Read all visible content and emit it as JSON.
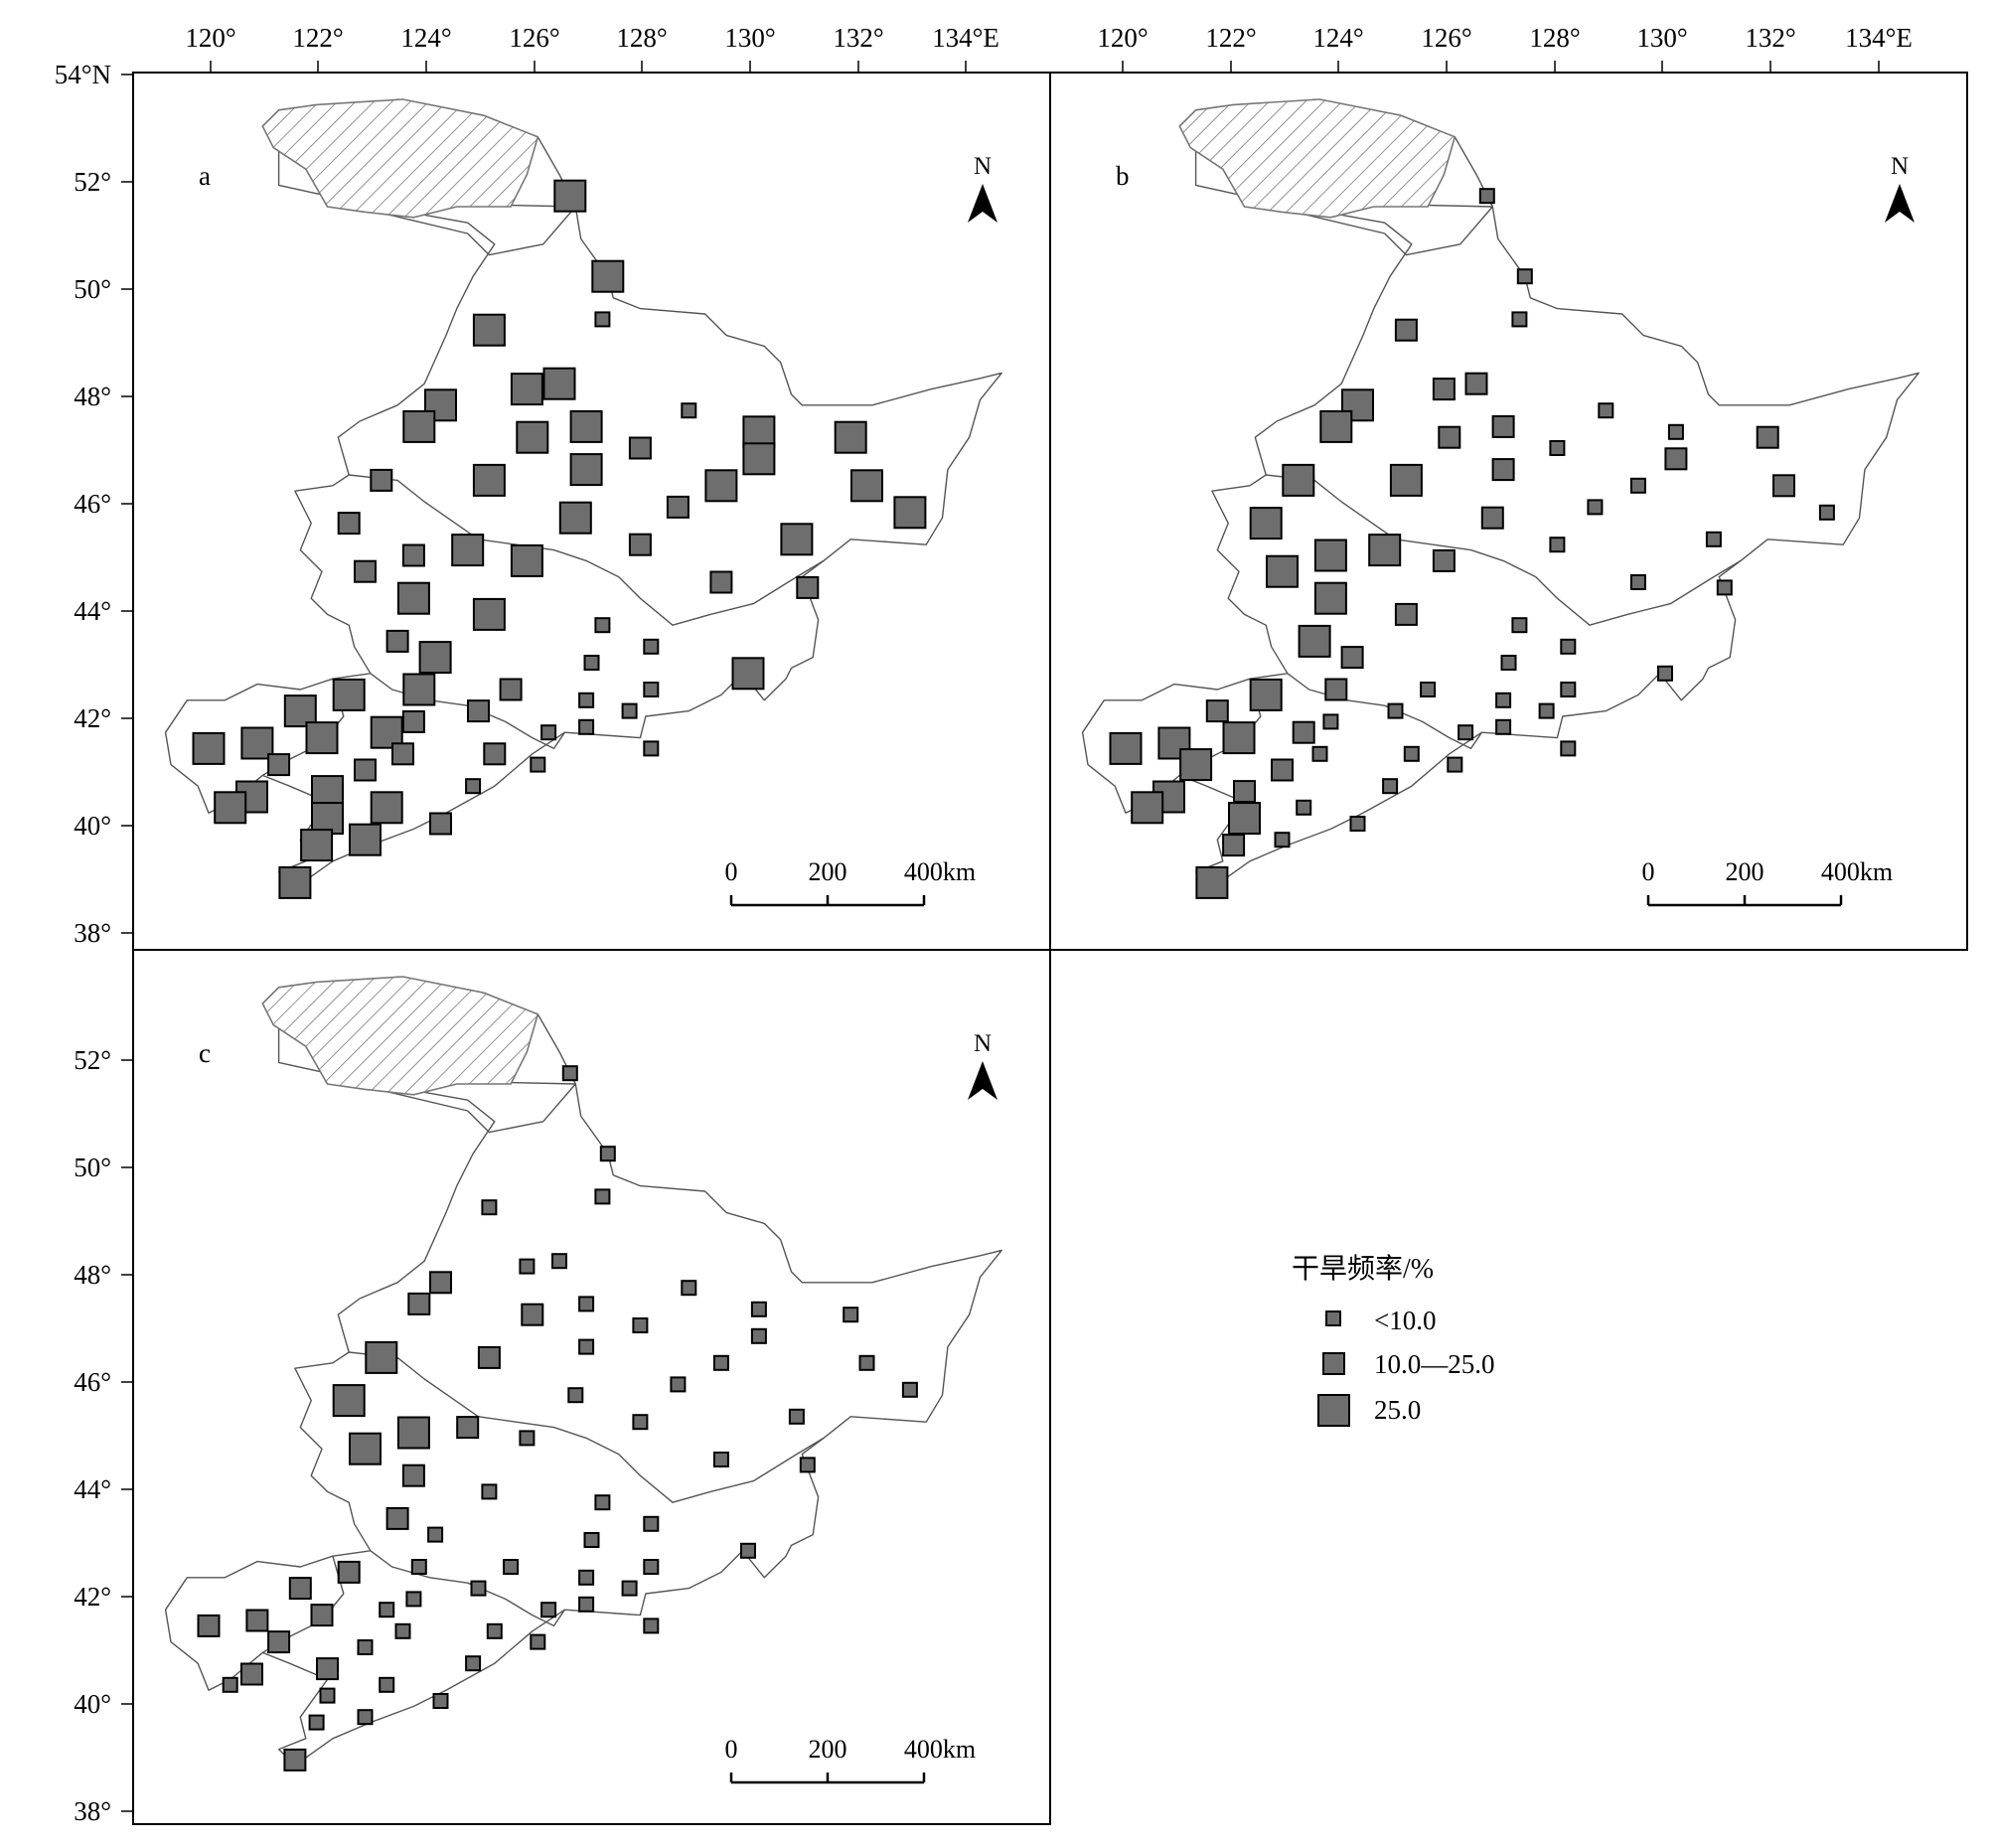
{
  "map": {
    "lon_ticks": [
      "120°",
      "122°",
      "124°",
      "126°",
      "128°",
      "130°",
      "132°",
      "134°E"
    ],
    "lat_ticks": [
      "54°N",
      "52°",
      "50°",
      "48°",
      "46°",
      "44°",
      "42°",
      "40°",
      "38°"
    ],
    "north_label": "N",
    "scale_bar": {
      "labels": [
        "0",
        "200",
        "400km"
      ]
    },
    "panels": [
      {
        "label": "a",
        "stations": [
          [
            126.7,
            51.7,
            "L"
          ],
          [
            127.4,
            50.2,
            "L"
          ],
          [
            127.3,
            49.4,
            "S"
          ],
          [
            125.2,
            49.2,
            "L"
          ],
          [
            125.9,
            48.1,
            "L"
          ],
          [
            126.5,
            48.2,
            "L"
          ],
          [
            124.3,
            47.8,
            "L"
          ],
          [
            123.9,
            47.4,
            "L"
          ],
          [
            126.0,
            47.2,
            "L"
          ],
          [
            127.0,
            47.4,
            "L"
          ],
          [
            128.9,
            47.7,
            "S"
          ],
          [
            130.2,
            47.3,
            "L"
          ],
          [
            131.9,
            47.2,
            "L"
          ],
          [
            128.0,
            47.0,
            "M"
          ],
          [
            130.2,
            46.8,
            "L"
          ],
          [
            127.0,
            46.6,
            "L"
          ],
          [
            125.2,
            46.4,
            "L"
          ],
          [
            132.2,
            46.3,
            "L"
          ],
          [
            129.5,
            46.3,
            "L"
          ],
          [
            128.7,
            45.9,
            "M"
          ],
          [
            123.2,
            46.4,
            "M"
          ],
          [
            126.8,
            45.7,
            "L"
          ],
          [
            122.6,
            45.6,
            "M"
          ],
          [
            133.0,
            45.8,
            "L"
          ],
          [
            130.9,
            45.3,
            "L"
          ],
          [
            128.0,
            45.2,
            "M"
          ],
          [
            123.8,
            45.0,
            "M"
          ],
          [
            124.8,
            45.1,
            "L"
          ],
          [
            125.9,
            44.9,
            "L"
          ],
          [
            122.9,
            44.7,
            "M"
          ],
          [
            123.8,
            44.2,
            "L"
          ],
          [
            129.5,
            44.5,
            "M"
          ],
          [
            131.1,
            44.4,
            "M"
          ],
          [
            125.2,
            43.9,
            "L"
          ],
          [
            127.3,
            43.7,
            "S"
          ],
          [
            123.5,
            43.4,
            "M"
          ],
          [
            124.2,
            43.1,
            "L"
          ],
          [
            128.2,
            43.3,
            "S"
          ],
          [
            130.0,
            42.8,
            "L"
          ],
          [
            127.1,
            43.0,
            "S"
          ],
          [
            123.9,
            42.5,
            "L"
          ],
          [
            125.6,
            42.5,
            "M"
          ],
          [
            128.2,
            42.5,
            "S"
          ],
          [
            127.0,
            42.3,
            "S"
          ],
          [
            122.6,
            42.4,
            "L"
          ],
          [
            121.7,
            42.1,
            "L"
          ],
          [
            127.8,
            42.1,
            "S"
          ],
          [
            123.8,
            41.9,
            "M"
          ],
          [
            125.0,
            42.1,
            "M"
          ],
          [
            123.3,
            41.7,
            "L"
          ],
          [
            122.1,
            41.6,
            "L"
          ],
          [
            120.9,
            41.5,
            "L"
          ],
          [
            120.0,
            41.4,
            "L"
          ],
          [
            126.3,
            41.7,
            "S"
          ],
          [
            127.0,
            41.8,
            "S"
          ],
          [
            123.6,
            41.3,
            "M"
          ],
          [
            125.3,
            41.3,
            "M"
          ],
          [
            121.3,
            41.1,
            "M"
          ],
          [
            122.9,
            41.0,
            "M"
          ],
          [
            126.1,
            41.1,
            "S"
          ],
          [
            128.2,
            41.4,
            "S"
          ],
          [
            122.2,
            40.6,
            "L"
          ],
          [
            120.8,
            40.5,
            "L"
          ],
          [
            120.4,
            40.3,
            "L"
          ],
          [
            123.3,
            40.3,
            "L"
          ],
          [
            124.9,
            40.7,
            "S"
          ],
          [
            122.2,
            40.1,
            "L"
          ],
          [
            124.3,
            40.0,
            "M"
          ],
          [
            122.0,
            39.6,
            "L"
          ],
          [
            122.9,
            39.7,
            "L"
          ],
          [
            121.6,
            38.9,
            "L"
          ]
        ]
      },
      {
        "label": "b",
        "stations": [
          [
            126.7,
            51.7,
            "S"
          ],
          [
            127.4,
            50.2,
            "S"
          ],
          [
            127.3,
            49.4,
            "S"
          ],
          [
            125.2,
            49.2,
            "M"
          ],
          [
            125.9,
            48.1,
            "M"
          ],
          [
            126.5,
            48.2,
            "M"
          ],
          [
            124.3,
            47.8,
            "L"
          ],
          [
            123.9,
            47.4,
            "L"
          ],
          [
            126.0,
            47.2,
            "M"
          ],
          [
            127.0,
            47.4,
            "M"
          ],
          [
            128.9,
            47.7,
            "S"
          ],
          [
            130.2,
            47.3,
            "S"
          ],
          [
            131.9,
            47.2,
            "M"
          ],
          [
            128.0,
            47.0,
            "S"
          ],
          [
            130.2,
            46.8,
            "M"
          ],
          [
            127.0,
            46.6,
            "M"
          ],
          [
            125.2,
            46.4,
            "L"
          ],
          [
            132.2,
            46.3,
            "M"
          ],
          [
            129.5,
            46.3,
            "S"
          ],
          [
            128.7,
            45.9,
            "S"
          ],
          [
            123.2,
            46.4,
            "L"
          ],
          [
            126.8,
            45.7,
            "M"
          ],
          [
            122.6,
            45.6,
            "L"
          ],
          [
            133.0,
            45.8,
            "S"
          ],
          [
            130.9,
            45.3,
            "S"
          ],
          [
            128.0,
            45.2,
            "S"
          ],
          [
            123.8,
            45.0,
            "L"
          ],
          [
            124.8,
            45.1,
            "L"
          ],
          [
            125.9,
            44.9,
            "M"
          ],
          [
            122.9,
            44.7,
            "L"
          ],
          [
            123.8,
            44.2,
            "L"
          ],
          [
            129.5,
            44.5,
            "S"
          ],
          [
            131.1,
            44.4,
            "S"
          ],
          [
            125.2,
            43.9,
            "M"
          ],
          [
            127.3,
            43.7,
            "S"
          ],
          [
            123.5,
            43.4,
            "L"
          ],
          [
            124.2,
            43.1,
            "M"
          ],
          [
            128.2,
            43.3,
            "S"
          ],
          [
            130.0,
            42.8,
            "S"
          ],
          [
            127.1,
            43.0,
            "S"
          ],
          [
            123.9,
            42.5,
            "M"
          ],
          [
            125.6,
            42.5,
            "S"
          ],
          [
            128.2,
            42.5,
            "S"
          ],
          [
            127.0,
            42.3,
            "S"
          ],
          [
            122.6,
            42.4,
            "L"
          ],
          [
            121.7,
            42.1,
            "M"
          ],
          [
            127.8,
            42.1,
            "S"
          ],
          [
            123.8,
            41.9,
            "S"
          ],
          [
            125.0,
            42.1,
            "S"
          ],
          [
            123.3,
            41.7,
            "M"
          ],
          [
            122.1,
            41.6,
            "L"
          ],
          [
            120.9,
            41.5,
            "L"
          ],
          [
            120.0,
            41.4,
            "L"
          ],
          [
            126.3,
            41.7,
            "S"
          ],
          [
            127.0,
            41.8,
            "S"
          ],
          [
            123.6,
            41.3,
            "S"
          ],
          [
            125.3,
            41.3,
            "S"
          ],
          [
            121.3,
            41.1,
            "L"
          ],
          [
            122.9,
            41.0,
            "M"
          ],
          [
            126.1,
            41.1,
            "S"
          ],
          [
            128.2,
            41.4,
            "S"
          ],
          [
            122.2,
            40.6,
            "M"
          ],
          [
            120.8,
            40.5,
            "L"
          ],
          [
            120.4,
            40.3,
            "L"
          ],
          [
            123.3,
            40.3,
            "S"
          ],
          [
            124.9,
            40.7,
            "S"
          ],
          [
            122.2,
            40.1,
            "L"
          ],
          [
            124.3,
            40.0,
            "S"
          ],
          [
            122.0,
            39.6,
            "M"
          ],
          [
            122.9,
            39.7,
            "S"
          ],
          [
            121.6,
            38.9,
            "L"
          ]
        ]
      },
      {
        "label": "c",
        "stations": [
          [
            126.7,
            51.7,
            "S"
          ],
          [
            127.4,
            50.2,
            "S"
          ],
          [
            127.3,
            49.4,
            "S"
          ],
          [
            125.2,
            49.2,
            "S"
          ],
          [
            125.9,
            48.1,
            "S"
          ],
          [
            126.5,
            48.2,
            "S"
          ],
          [
            124.3,
            47.8,
            "M"
          ],
          [
            123.9,
            47.4,
            "M"
          ],
          [
            126.0,
            47.2,
            "M"
          ],
          [
            127.0,
            47.4,
            "S"
          ],
          [
            128.9,
            47.7,
            "S"
          ],
          [
            130.2,
            47.3,
            "S"
          ],
          [
            131.9,
            47.2,
            "S"
          ],
          [
            128.0,
            47.0,
            "S"
          ],
          [
            130.2,
            46.8,
            "S"
          ],
          [
            127.0,
            46.6,
            "S"
          ],
          [
            125.2,
            46.4,
            "M"
          ],
          [
            132.2,
            46.3,
            "S"
          ],
          [
            129.5,
            46.3,
            "S"
          ],
          [
            128.7,
            45.9,
            "S"
          ],
          [
            123.2,
            46.4,
            "L"
          ],
          [
            126.8,
            45.7,
            "S"
          ],
          [
            122.6,
            45.6,
            "L"
          ],
          [
            133.0,
            45.8,
            "S"
          ],
          [
            130.9,
            45.3,
            "S"
          ],
          [
            128.0,
            45.2,
            "S"
          ],
          [
            123.8,
            45.0,
            "L"
          ],
          [
            124.8,
            45.1,
            "M"
          ],
          [
            125.9,
            44.9,
            "S"
          ],
          [
            122.9,
            44.7,
            "L"
          ],
          [
            123.8,
            44.2,
            "M"
          ],
          [
            129.5,
            44.5,
            "S"
          ],
          [
            131.1,
            44.4,
            "S"
          ],
          [
            125.2,
            43.9,
            "S"
          ],
          [
            127.3,
            43.7,
            "S"
          ],
          [
            123.5,
            43.4,
            "M"
          ],
          [
            124.2,
            43.1,
            "S"
          ],
          [
            128.2,
            43.3,
            "S"
          ],
          [
            130.0,
            42.8,
            "S"
          ],
          [
            127.1,
            43.0,
            "S"
          ],
          [
            123.9,
            42.5,
            "S"
          ],
          [
            125.6,
            42.5,
            "S"
          ],
          [
            128.2,
            42.5,
            "S"
          ],
          [
            127.0,
            42.3,
            "S"
          ],
          [
            122.6,
            42.4,
            "M"
          ],
          [
            121.7,
            42.1,
            "M"
          ],
          [
            127.8,
            42.1,
            "S"
          ],
          [
            123.8,
            41.9,
            "S"
          ],
          [
            125.0,
            42.1,
            "S"
          ],
          [
            123.3,
            41.7,
            "S"
          ],
          [
            122.1,
            41.6,
            "M"
          ],
          [
            120.9,
            41.5,
            "M"
          ],
          [
            120.0,
            41.4,
            "M"
          ],
          [
            126.3,
            41.7,
            "S"
          ],
          [
            127.0,
            41.8,
            "S"
          ],
          [
            123.6,
            41.3,
            "S"
          ],
          [
            125.3,
            41.3,
            "S"
          ],
          [
            121.3,
            41.1,
            "M"
          ],
          [
            122.9,
            41.0,
            "S"
          ],
          [
            126.1,
            41.1,
            "S"
          ],
          [
            128.2,
            41.4,
            "S"
          ],
          [
            122.2,
            40.6,
            "M"
          ],
          [
            120.8,
            40.5,
            "M"
          ],
          [
            120.4,
            40.3,
            "S"
          ],
          [
            123.3,
            40.3,
            "S"
          ],
          [
            124.9,
            40.7,
            "S"
          ],
          [
            122.2,
            40.1,
            "S"
          ],
          [
            124.3,
            40.0,
            "S"
          ],
          [
            122.0,
            39.6,
            "S"
          ],
          [
            122.9,
            39.7,
            "S"
          ],
          [
            121.6,
            38.9,
            "M"
          ]
        ]
      }
    ]
  },
  "legend": {
    "title": "干旱频率/%",
    "items": [
      {
        "label": "<10.0",
        "class": "S"
      },
      {
        "label": "10.0—25.0",
        "class": "M"
      },
      {
        "label": "25.0",
        "class": "L"
      }
    ]
  },
  "colors": {
    "station_fill": "#6e6e6e",
    "outline": "#000000",
    "border": "#555555",
    "hatch": "#777777"
  }
}
